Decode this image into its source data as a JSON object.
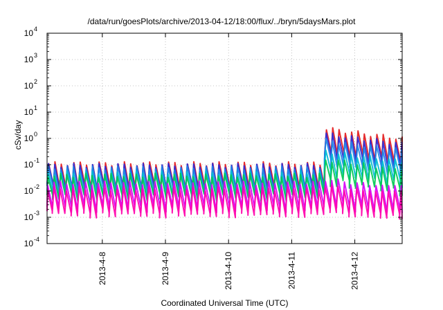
{
  "chart_data": {
    "type": "line",
    "title": "/data/run/goesPlots/archive/2013-04-12/18:00/flux/../bryn/5daysMars.plot",
    "xlabel": "Coordinated Universal Time (UTC)",
    "ylabel": "cSv/day",
    "yscale": "log",
    "ylim": [
      0.0001,
      10000
    ],
    "xlim": [
      "2013-04-07T03:00",
      "2013-04-12T18:00"
    ],
    "grid": true,
    "legend": "none",
    "y_ticks": [
      {
        "value": 0.0001,
        "base": "10",
        "exp": "-4"
      },
      {
        "value": 0.001,
        "base": "10",
        "exp": "-3"
      },
      {
        "value": 0.01,
        "base": "10",
        "exp": "-2"
      },
      {
        "value": 0.1,
        "base": "10",
        "exp": "-1"
      },
      {
        "value": 1,
        "base": "10",
        "exp": "0"
      },
      {
        "value": 10,
        "base": "10",
        "exp": "1"
      },
      {
        "value": 100,
        "base": "10",
        "exp": "2"
      },
      {
        "value": 1000,
        "base": "10",
        "exp": "3"
      },
      {
        "value": 10000,
        "base": "10",
        "exp": "4"
      }
    ],
    "x_ticks": [
      {
        "value": "2013-04-08T00:00",
        "label": "2013-4-8"
      },
      {
        "value": "2013-04-09T00:00",
        "label": "2013-4-9"
      },
      {
        "value": "2013-04-10T00:00",
        "label": "2013-4-10"
      },
      {
        "value": "2013-04-11T00:00",
        "label": "2013-4-11"
      },
      {
        "value": "2013-04-12T00:00",
        "label": "2013-4-12"
      }
    ],
    "series": [
      {
        "color": "#e41a1c",
        "peak_before": 0.11,
        "peak_after": 2.4,
        "drop_factor": 0.12
      },
      {
        "color": "#2b2bd9",
        "peak_before": 0.095,
        "peak_after": 1.5,
        "drop_factor": 0.13
      },
      {
        "color": "#1e88e5",
        "peak_before": 0.075,
        "peak_after": 0.85,
        "drop_factor": 0.14
      },
      {
        "color": "#00bcd4",
        "peak_before": 0.05,
        "peak_after": 0.32,
        "drop_factor": 0.15
      },
      {
        "color": "#00c853",
        "peak_before": 0.04,
        "peak_after": 0.16,
        "drop_factor": 0.16
      },
      {
        "color": "#d500f9",
        "peak_before": 0.02,
        "peak_after": 0.028,
        "drop_factor": 0.12
      },
      {
        "color": "#ff00aa",
        "peak_before": 0.012,
        "peak_after": 0.016,
        "drop_factor": 0.12
      }
    ],
    "event_time": "2013-04-11T12:00",
    "cycle_hours": 2.4
  }
}
